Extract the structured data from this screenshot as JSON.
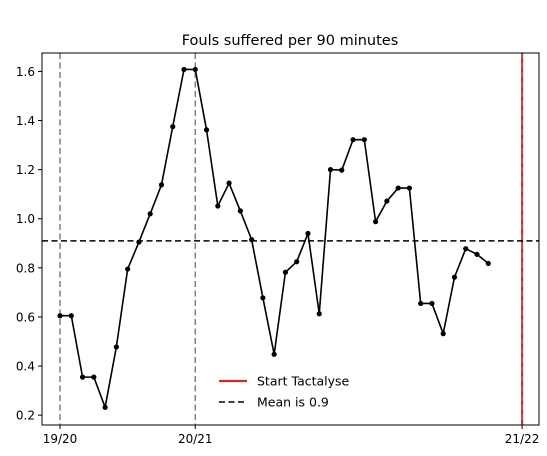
{
  "chart_data": {
    "type": "line",
    "title": "Fouls suffered per 90 minutes",
    "xlabel": "",
    "ylabel": "",
    "ylim": [
      0.16,
      1.675
    ],
    "xlim": [
      -1.6,
      42.5
    ],
    "y_ticks": [
      0.2,
      0.4,
      0.6,
      0.8,
      1.0,
      1.2,
      1.4,
      1.6
    ],
    "y_tick_labels": [
      "0.2",
      "0.4",
      "0.6",
      "0.8",
      "1.0",
      "1.2",
      "1.4",
      "1.6"
    ],
    "x_ticks": [
      {
        "x": 0,
        "label": "19/20"
      },
      {
        "x": 12,
        "label": "20/21"
      },
      {
        "x": 41,
        "label": "21/22"
      }
    ],
    "season_lines": [
      0,
      12
    ],
    "grid": false,
    "series": [
      {
        "color": "#000000",
        "x": [
          0,
          1,
          2,
          3,
          4,
          5,
          6,
          7,
          8,
          9,
          10,
          11,
          12,
          13,
          14,
          15,
          16,
          17,
          18,
          19,
          20,
          21,
          22,
          23,
          24,
          25,
          26,
          27,
          28,
          29,
          30,
          31,
          32,
          33,
          34,
          35,
          36,
          37,
          38
        ],
        "values": [
          0.605,
          0.605,
          0.355,
          0.355,
          0.232,
          0.478,
          0.795,
          0.905,
          1.02,
          1.138,
          1.375,
          1.608,
          1.608,
          1.362,
          1.052,
          1.145,
          1.032,
          0.915,
          0.678,
          0.448,
          0.782,
          0.825,
          0.94,
          0.613,
          1.2,
          1.198,
          1.322,
          1.322,
          0.988,
          1.072,
          1.125,
          1.125,
          0.655,
          0.655,
          0.532,
          0.762,
          0.878,
          0.855,
          0.818
        ]
      }
    ],
    "mean_line": {
      "value": 0.91,
      "color": "#000000",
      "style": "dashed"
    },
    "start_line": {
      "x": 41,
      "color": "#d62728"
    },
    "legend": {
      "placement": "lower-center",
      "entries": [
        {
          "label": "Start Tactalyse",
          "color": "#d62728",
          "style": "solid"
        },
        {
          "label": "Mean is 0.9",
          "color": "#000000",
          "style": "dashed"
        }
      ]
    }
  }
}
